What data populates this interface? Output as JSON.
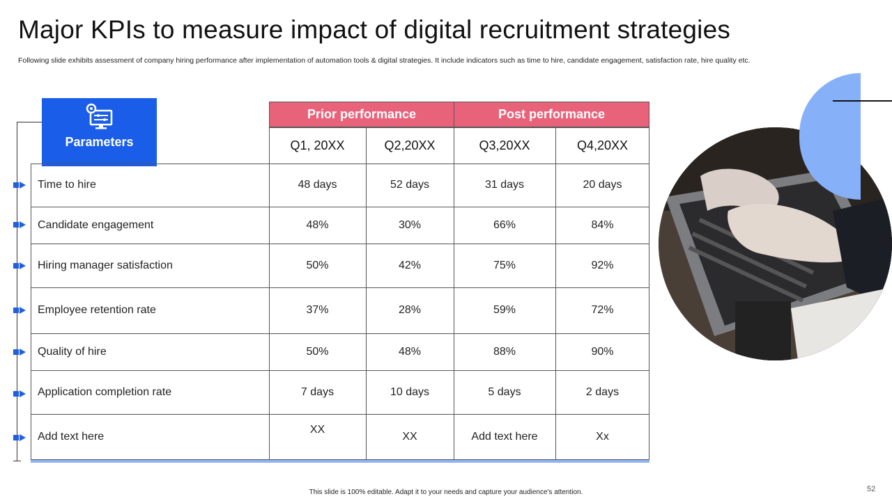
{
  "title": "Major KPIs to measure impact of digital recruitment strategies",
  "subtitle": "Following slide exhibits assessment of company hiring performance after implementation of automation tools & digital strategies. It include indicators such as time to hire, candidate engagement, satisfaction rate, hire quality etc.",
  "parameters_label": "Parameters",
  "group_headers": {
    "prior": "Prior performance",
    "post": "Post performance"
  },
  "quarters": [
    "Q1, 20XX",
    "Q2,20XX",
    "Q3,20XX",
    "Q4,20XX"
  ],
  "rows": [
    {
      "label": "Time to hire",
      "values": [
        "48 days",
        "52 days",
        "31 days",
        "20 days"
      ]
    },
    {
      "label": "Candidate engagement",
      "values": [
        "48%",
        "30%",
        "66%",
        "84%"
      ]
    },
    {
      "label": "Hiring manager satisfaction",
      "values": [
        "50%",
        "42%",
        "75%",
        "92%"
      ]
    },
    {
      "label": "Employee retention rate",
      "values": [
        "37%",
        "28%",
        "59%",
        "72%"
      ]
    },
    {
      "label": "Quality of hire",
      "values": [
        "50%",
        "48%",
        "88%",
        "90%"
      ]
    },
    {
      "label": "Application completion rate",
      "values": [
        "7 days",
        "10 days",
        "5 days",
        "2 days"
      ]
    },
    {
      "label": "Add text here",
      "values": [
        "XX",
        "XX",
        "Add text here",
        "Xx"
      ]
    }
  ],
  "colors": {
    "accent_blue": "#1a5de8",
    "header_pink": "#e8637a",
    "light_blue": "#86b0f7"
  },
  "icons": {
    "parameters": "settings-monitor-icon",
    "photo": "laptop-typing-photo"
  },
  "footer": "This slide is 100% editable. Adapt it to your needs and capture your audience's attention.",
  "page_number": "52"
}
